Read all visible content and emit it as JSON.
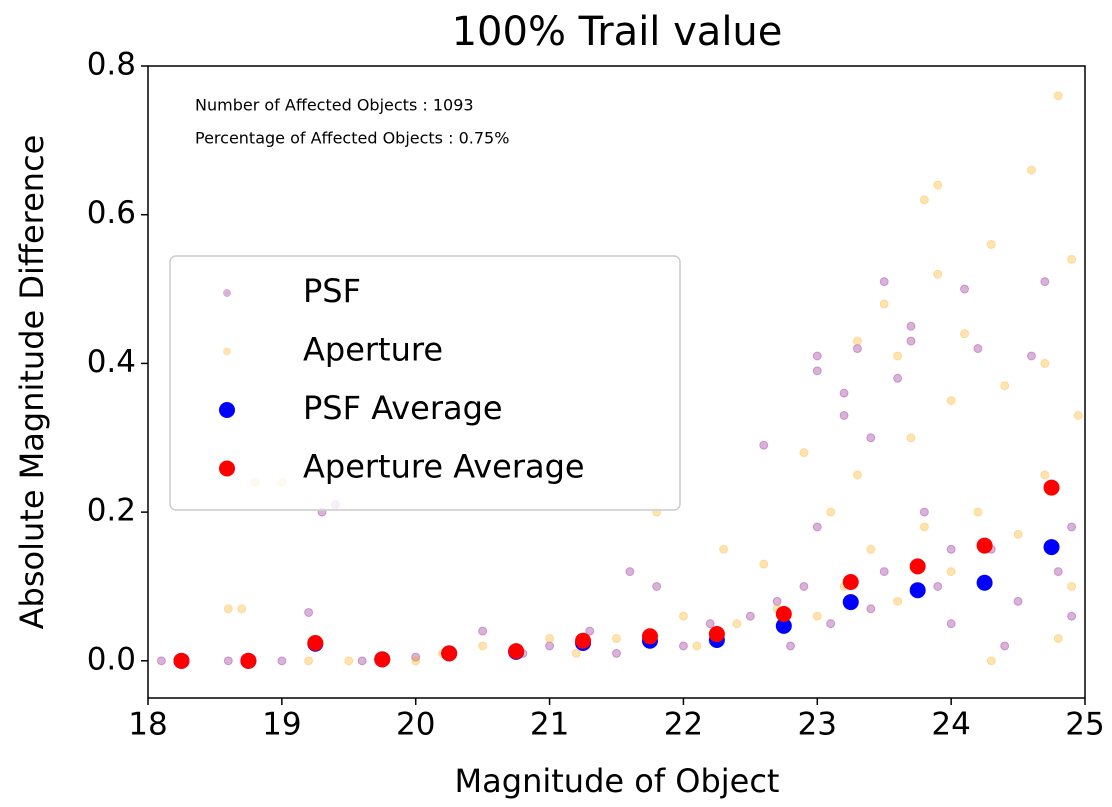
{
  "chart_data": {
    "type": "scatter",
    "title": "100% Trail value",
    "xlabel": "Magnitude of Object",
    "ylabel": "Absolute Magnitude Difference",
    "annotations": [
      "Number of Affected Objects : 1093",
      "Percentage of Affected Objects : 0.75%"
    ],
    "xlim": [
      18,
      25
    ],
    "ylim": [
      -0.05,
      0.8
    ],
    "xticks": [
      18,
      19,
      20,
      21,
      22,
      23,
      24,
      25
    ],
    "yticks": [
      {
        "value": 0,
        "label": "0.0"
      },
      0.2,
      0.4,
      0.6,
      0.8
    ],
    "legend": "center left",
    "series": [
      {
        "name": "PSF",
        "color": "#800080",
        "alpha": 0.3,
        "x": [
          18.1,
          18.6,
          19.0,
          19.2,
          19.3,
          19.4,
          19.6,
          20.0,
          20.5,
          20.8,
          21.0,
          21.3,
          21.6,
          21.8,
          22.0,
          22.2,
          22.5,
          22.7,
          22.9,
          23.0,
          23.0,
          23.2,
          23.2,
          23.3,
          23.4,
          23.5,
          23.6,
          23.7,
          23.7,
          23.8,
          23.9,
          24.0,
          24.1,
          24.2,
          24.3,
          24.5,
          24.6,
          24.7,
          24.8,
          24.9,
          23.1,
          23.4,
          22.8,
          24.4,
          24.0,
          23.5,
          22.6,
          23.0,
          24.9,
          21.5
        ],
        "values": [
          0.0,
          0.0,
          0.0,
          0.065,
          0.2,
          0.21,
          0.0,
          0.005,
          0.04,
          0.01,
          0.02,
          0.04,
          0.12,
          0.1,
          0.02,
          0.05,
          0.06,
          0.08,
          0.1,
          0.41,
          0.39,
          0.33,
          0.36,
          0.42,
          0.3,
          0.51,
          0.38,
          0.45,
          0.43,
          0.2,
          0.1,
          0.05,
          0.5,
          0.42,
          0.15,
          0.08,
          0.41,
          0.51,
          0.12,
          0.06,
          0.05,
          0.07,
          0.02,
          0.02,
          0.15,
          0.12,
          0.29,
          0.18,
          0.18,
          0.01
        ]
      },
      {
        "name": "Aperture",
        "color": "#ffa500",
        "alpha": 0.3,
        "x": [
          18.6,
          18.7,
          18.8,
          19.0,
          19.5,
          20.0,
          20.5,
          21.0,
          21.5,
          21.8,
          22.0,
          22.3,
          22.6,
          22.9,
          23.1,
          23.3,
          23.5,
          23.6,
          23.8,
          23.9,
          23.9,
          24.0,
          24.1,
          24.3,
          24.4,
          24.6,
          24.7,
          24.8,
          24.9,
          24.95,
          23.2,
          23.4,
          23.6,
          23.8,
          24.0,
          24.2,
          24.5,
          24.7,
          24.9,
          22.4,
          22.7,
          23.0,
          23.7,
          24.3,
          24.8,
          21.2,
          20.2,
          19.2,
          22.1,
          23.3
        ],
        "values": [
          0.07,
          0.07,
          0.24,
          0.24,
          0.0,
          0.0,
          0.02,
          0.03,
          0.03,
          0.2,
          0.06,
          0.15,
          0.13,
          0.28,
          0.2,
          0.43,
          0.48,
          0.41,
          0.62,
          0.64,
          0.52,
          0.35,
          0.44,
          0.56,
          0.37,
          0.66,
          0.4,
          0.76,
          0.54,
          0.33,
          0.1,
          0.15,
          0.08,
          0.18,
          0.12,
          0.2,
          0.17,
          0.25,
          0.1,
          0.05,
          0.07,
          0.06,
          0.3,
          0.0,
          0.03,
          0.01,
          0.01,
          0.0,
          0.02,
          0.25
        ]
      },
      {
        "name": "PSF Average",
        "color": "#0000ff",
        "alpha": 1,
        "x": [
          18.25,
          18.75,
          19.25,
          19.75,
          20.25,
          20.75,
          21.25,
          21.75,
          22.25,
          22.75,
          23.25,
          23.75,
          24.25,
          24.75
        ],
        "values": [
          0.0,
          0.0,
          0.023,
          0.002,
          0.01,
          0.012,
          0.024,
          0.027,
          0.028,
          0.047,
          0.079,
          0.095,
          0.105,
          0.153
        ]
      },
      {
        "name": "Aperture Average",
        "color": "#ff0000",
        "alpha": 1,
        "x": [
          18.25,
          18.75,
          19.25,
          19.75,
          20.25,
          20.75,
          21.25,
          21.75,
          22.25,
          22.75,
          23.25,
          23.75,
          24.25,
          24.75
        ],
        "values": [
          0.0,
          0.0,
          0.024,
          0.002,
          0.01,
          0.013,
          0.027,
          0.033,
          0.036,
          0.063,
          0.106,
          0.127,
          0.155,
          0.233
        ]
      }
    ]
  }
}
